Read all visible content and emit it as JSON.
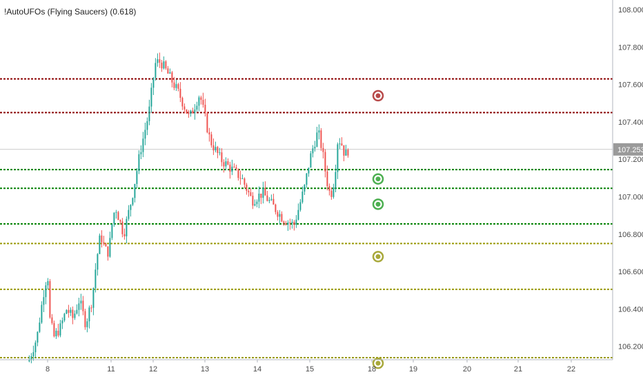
{
  "indicator": {
    "title": "!AutoUFOs (Flying Saucers) (0.618)"
  },
  "colors": {
    "up": "#26a69a",
    "down": "#ef5350",
    "red_level": "#8b0000",
    "green_level": "#008000",
    "olive_level": "#9a9a00",
    "axis_text": "#4a4a4a",
    "price_badge_bg": "#9a9a9a",
    "price_badge_text": "#ffffff"
  },
  "chart_data": {
    "type": "candlestick",
    "title": "!AutoUFOs (Flying Saucers) (0.618)",
    "ylim": [
      106.12,
      108.06
    ],
    "y_ticks": [
      "108.000",
      "107.800",
      "107.600",
      "107.400",
      "107.200",
      "107.000",
      "106.800",
      "106.600",
      "106.400",
      "106.200"
    ],
    "y_tick_values": [
      108.0,
      107.8,
      107.6,
      107.4,
      107.2,
      107.0,
      106.8,
      106.6,
      106.4,
      106.2
    ],
    "x_ticks": [
      "8",
      "11",
      "12",
      "13",
      "14",
      "15",
      "18",
      "19",
      "20",
      "21",
      "22"
    ],
    "x_tick_days": [
      8,
      11,
      12,
      13,
      14,
      15,
      18,
      19,
      20,
      21,
      22
    ],
    "x_day_range": [
      7.1,
      22.8
    ],
    "last_price": "107.253",
    "last_price_value": 107.253,
    "levels": [
      {
        "price": 107.63,
        "color": "red"
      },
      {
        "price": 107.45,
        "color": "red"
      },
      {
        "price": 107.145,
        "color": "green"
      },
      {
        "price": 107.045,
        "color": "green"
      },
      {
        "price": 106.855,
        "color": "green"
      },
      {
        "price": 106.75,
        "color": "olive"
      },
      {
        "price": 106.505,
        "color": "olive"
      },
      {
        "price": 106.14,
        "color": "olive"
      }
    ],
    "targets": [
      {
        "price": 107.54,
        "color": "red"
      },
      {
        "price": 107.095,
        "color": "green"
      },
      {
        "price": 106.96,
        "color": "green"
      },
      {
        "price": 106.68,
        "color": "olive"
      },
      {
        "price": 106.11,
        "color": "olive"
      }
    ],
    "target_day": 18.15,
    "price_path": [
      [
        7.1,
        106.12
      ],
      [
        7.5,
        106.25
      ],
      [
        7.8,
        106.48
      ],
      [
        8.0,
        106.6
      ],
      [
        8.1,
        106.35
      ],
      [
        8.3,
        106.25
      ],
      [
        8.6,
        106.3
      ],
      [
        8.9,
        106.4
      ],
      [
        9.2,
        106.35
      ],
      [
        9.5,
        106.45
      ],
      [
        9.8,
        106.32
      ],
      [
        10.1,
        106.45
      ],
      [
        10.3,
        106.65
      ],
      [
        10.5,
        106.8
      ],
      [
        10.7,
        106.72
      ],
      [
        10.9,
        106.7
      ],
      [
        11.1,
        106.95
      ],
      [
        11.3,
        106.8
      ],
      [
        11.5,
        107.0
      ],
      [
        11.7,
        107.25
      ],
      [
        11.9,
        107.45
      ],
      [
        12.05,
        107.72
      ],
      [
        12.15,
        107.72
      ],
      [
        12.3,
        107.65
      ],
      [
        12.5,
        107.55
      ],
      [
        12.7,
        107.42
      ],
      [
        12.9,
        107.55
      ],
      [
        13.1,
        107.3
      ],
      [
        13.3,
        107.2
      ],
      [
        13.5,
        107.15
      ],
      [
        13.7,
        107.1
      ],
      [
        13.9,
        106.98
      ],
      [
        14.1,
        107.02
      ],
      [
        14.3,
        106.95
      ],
      [
        14.5,
        106.88
      ],
      [
        14.7,
        106.85
      ],
      [
        14.9,
        107.05
      ],
      [
        15.0,
        107.2
      ],
      [
        15.2,
        107.28
      ],
      [
        15.4,
        107.35
      ],
      [
        15.6,
        107.25
      ],
      [
        15.8,
        107.1
      ],
      [
        16.0,
        107.0
      ],
      [
        16.2,
        107.1
      ],
      [
        16.35,
        107.3
      ],
      [
        16.5,
        107.3
      ],
      [
        16.7,
        107.22
      ],
      [
        16.85,
        107.25
      ]
    ]
  }
}
